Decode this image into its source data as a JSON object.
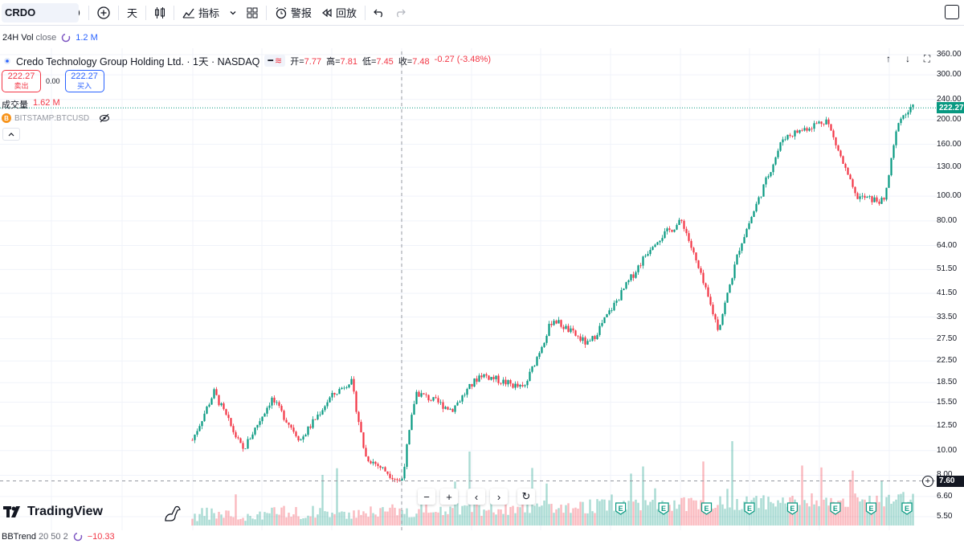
{
  "toolbar": {
    "symbol": "CRDO",
    "interval": "天",
    "indicators_label": "指标",
    "alert_label": "警报",
    "replay_label": "回放"
  },
  "vol_row": {
    "label": "24H Vol",
    "sub": "close",
    "value": "1.2 M"
  },
  "legend": {
    "title": "Credo Technology Group Holding Ltd. · 1天 · NASDAQ",
    "open_label": "开=",
    "open": "7.77",
    "high_label": "高=",
    "high": "7.81",
    "low_label": "低=",
    "low": "7.45",
    "close_label": "收=",
    "close": "7.48",
    "change": "-0.27 (-3.48%)"
  },
  "prices": {
    "sell_value": "222.27",
    "sell_label": "卖出",
    "spread": "0.00",
    "buy_value": "222.27",
    "buy_label": "买入"
  },
  "volume_legend": {
    "label": "成交量",
    "value": "1.62 M"
  },
  "compare_legend": {
    "symbol": "BITSTAMP:BTCUSD",
    "icon_letter": "B"
  },
  "axis": {
    "ticks": [
      "360.00",
      "300.00",
      "240.00",
      "200.00",
      "160.00",
      "130.00",
      "100.00",
      "80.00",
      "64.00",
      "51.50",
      "41.50",
      "33.50",
      "27.50",
      "22.50",
      "18.50",
      "15.50",
      "12.50",
      "10.00",
      "8.00",
      "6.60",
      "5.50"
    ],
    "last_price_tag": "222.27",
    "crosshair_tag": "7.60"
  },
  "colors": {
    "up": "#089981",
    "down": "#f23645",
    "accent": "#2962ff",
    "last_price": "#089981"
  },
  "brand": "TradingView",
  "bb_trend": {
    "label": "BBTrend",
    "params": "20 50 2",
    "value": "−10.33"
  },
  "earnings_marker": "E",
  "chart_data": {
    "type": "candlestick",
    "scale": "log",
    "yrange": [
      5.5,
      360
    ],
    "checkpoints": [
      {
        "t": 0.0,
        "price": 11.0
      },
      {
        "t": 0.03,
        "price": 17.0
      },
      {
        "t": 0.07,
        "price": 10.0
      },
      {
        "t": 0.11,
        "price": 16.0
      },
      {
        "t": 0.15,
        "price": 11.0
      },
      {
        "t": 0.19,
        "price": 16.0
      },
      {
        "t": 0.22,
        "price": 19.0
      },
      {
        "t": 0.24,
        "price": 9.5
      },
      {
        "t": 0.29,
        "price": 7.5
      },
      {
        "t": 0.31,
        "price": 17.0
      },
      {
        "t": 0.36,
        "price": 14.5
      },
      {
        "t": 0.4,
        "price": 20.0
      },
      {
        "t": 0.46,
        "price": 17.5
      },
      {
        "t": 0.5,
        "price": 33.0
      },
      {
        "t": 0.55,
        "price": 26.0
      },
      {
        "t": 0.64,
        "price": 66.0
      },
      {
        "t": 0.68,
        "price": 80.0
      },
      {
        "t": 0.73,
        "price": 30.0
      },
      {
        "t": 0.76,
        "price": 64.0
      },
      {
        "t": 0.82,
        "price": 170.0
      },
      {
        "t": 0.88,
        "price": 200.0
      },
      {
        "t": 0.92,
        "price": 100.0
      },
      {
        "t": 0.96,
        "price": 95.0
      },
      {
        "t": 0.98,
        "price": 200.0
      },
      {
        "t": 1.0,
        "price": 222.27
      }
    ],
    "earnings_positions": [
      0.6,
      0.66,
      0.72,
      0.78,
      0.84,
      0.9,
      0.95,
      1.0
    ]
  }
}
